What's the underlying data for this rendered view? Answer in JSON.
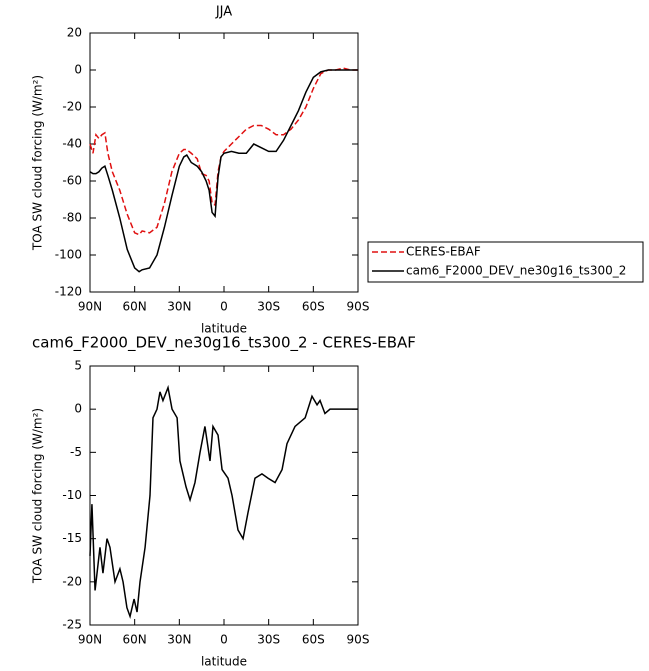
{
  "chart_data": [
    {
      "type": "line",
      "title": "JJA",
      "xlabel": "latitude",
      "ylabel": "TOA SW cloud forcing (W/m²)",
      "x": [
        90,
        88,
        86,
        84,
        82,
        80,
        78,
        75,
        70,
        65,
        60,
        57,
        55,
        50,
        45,
        40,
        35,
        30,
        27,
        25,
        22,
        18,
        15,
        12,
        10,
        8,
        6,
        4,
        2,
        0,
        -5,
        -10,
        -15,
        -20,
        -25,
        -30,
        -35,
        -40,
        -45,
        -50,
        -55,
        -60,
        -65,
        -70,
        -75,
        -80,
        -85,
        -90
      ],
      "series": [
        {
          "name": "CERES-EBAF",
          "color": "#e01010",
          "linestyle": "dashed",
          "values": [
            -40,
            -45,
            -35,
            -37,
            -35,
            -34,
            -45,
            -55,
            -65,
            -78,
            -88,
            -89,
            -87,
            -88,
            -85,
            -72,
            -55,
            -45,
            -43,
            -43,
            -45,
            -48,
            -56,
            -57,
            -60,
            -72,
            -73,
            -55,
            -47,
            -44,
            -40,
            -36,
            -32,
            -30,
            -30,
            -32,
            -35,
            -35,
            -32,
            -27,
            -20,
            -10,
            -2,
            0,
            0,
            1,
            0,
            0
          ]
        },
        {
          "name": "cam6_F2000_DEV_ne30g16_ts300_2",
          "color": "#000000",
          "linestyle": "solid",
          "values": [
            -55,
            -56,
            -56,
            -55,
            -53,
            -52,
            -57,
            -65,
            -80,
            -97,
            -107,
            -109,
            -108,
            -107,
            -100,
            -85,
            -68,
            -52,
            -47,
            -46,
            -50,
            -52,
            -55,
            -60,
            -65,
            -77,
            -79,
            -58,
            -47,
            -45,
            -44,
            -45,
            -45,
            -40,
            -42,
            -44,
            -44,
            -38,
            -30,
            -22,
            -12,
            -4,
            -1,
            0,
            0,
            0,
            0,
            0
          ]
        }
      ],
      "xlim": [
        90,
        -90
      ],
      "xticks": [
        {
          "value": 90,
          "label": "90N"
        },
        {
          "value": 60,
          "label": "60N"
        },
        {
          "value": 30,
          "label": "30N"
        },
        0,
        {
          "value": -30,
          "label": "30S"
        },
        {
          "value": -60,
          "label": "60S"
        },
        {
          "value": -90,
          "label": "90S"
        }
      ],
      "ylim": [
        -120,
        20
      ],
      "yticks": [
        20,
        0,
        -20,
        -40,
        -60,
        -80,
        -100,
        -120
      ],
      "legend": "right"
    },
    {
      "type": "line",
      "title": "cam6_F2000_DEV_ne30g16_ts300_2 - CERES-EBAF",
      "xlabel": "latitude",
      "ylabel": "TOA SW cloud forcing (W/m²)",
      "x": [
        90,
        88.7,
        86.6,
        83.3,
        81.3,
        78.6,
        76.6,
        73.2,
        69.9,
        67.8,
        65.2,
        63.1,
        60.4,
        58.4,
        56.4,
        53,
        49.7,
        47.7,
        45,
        43,
        41,
        37.6,
        34.9,
        31.5,
        29.6,
        25.5,
        22.8,
        19.5,
        16.1,
        12.8,
        9.4,
        7.4,
        4,
        1.3,
        -2.7,
        -5.4,
        -9.4,
        -12.8,
        -16.1,
        -20.8,
        -25.5,
        -29.6,
        -34.3,
        -39,
        -42.3,
        -47.7,
        -54.5,
        -59.1,
        -62.5,
        -64.5,
        -67.8,
        -71.2,
        -90
      ],
      "values": [
        -17,
        -11,
        -21,
        -16,
        -19,
        -15,
        -16,
        -20,
        -18.5,
        -20,
        -23,
        -24,
        -22,
        -23.5,
        -20,
        -16,
        -10,
        -1,
        0,
        2,
        1,
        2.5,
        0,
        -1,
        -6,
        -9,
        -10.5,
        -8.5,
        -5,
        -2,
        -6,
        -2,
        -3,
        -7,
        -8,
        -10,
        -14,
        -15,
        -12,
        -8,
        -7.5,
        -8,
        -8.5,
        -7,
        -4,
        -2,
        -1,
        1.5,
        0.5,
        1,
        -0.5,
        0,
        0
      ],
      "color": "#000000",
      "linestyle": "solid",
      "xlim": [
        90,
        -90
      ],
      "xticks": [
        {
          "value": 90,
          "label": "90N"
        },
        {
          "value": 60,
          "label": "60N"
        },
        {
          "value": 30,
          "label": "30N"
        },
        0,
        {
          "value": -30,
          "label": "30S"
        },
        {
          "value": -60,
          "label": "60S"
        },
        {
          "value": -90,
          "label": "90S"
        }
      ],
      "ylim": [
        -25,
        5
      ],
      "yticks": [
        5,
        0,
        -5,
        -10,
        -15,
        -20,
        -25
      ]
    }
  ]
}
